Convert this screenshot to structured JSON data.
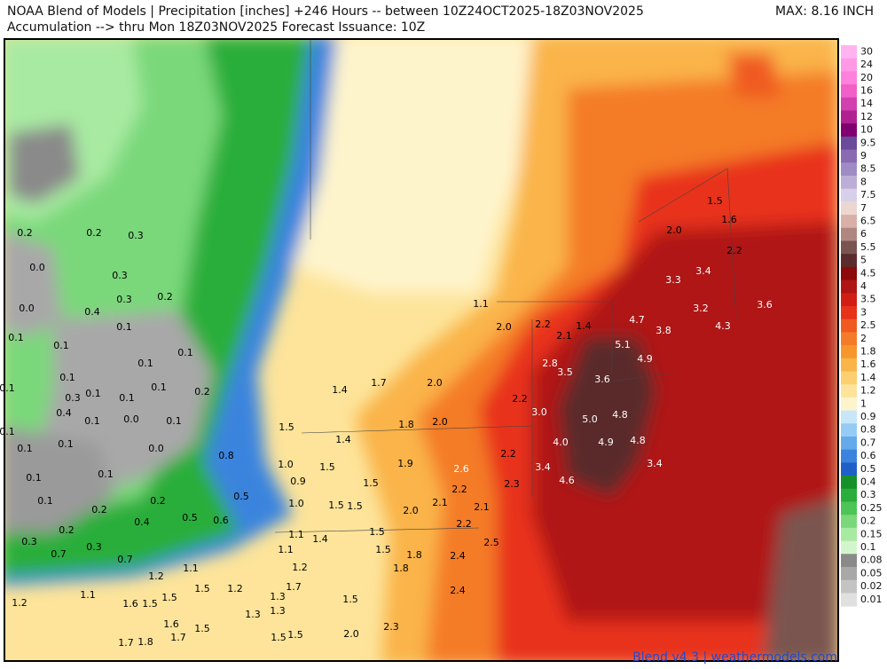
{
  "header": {
    "line1": "NOAA Blend of Models | Precipitation [inches] +246 Hours -- between 10Z24OCT2025-18Z03NOV2025",
    "line2": "Accumulation --> thru Mon 18Z03NOV2025   Forecast Issuance: 10Z",
    "max": "MAX: 8.16 INCH"
  },
  "footer": "Blend v4.3 | weathermodels.com",
  "legend": {
    "items": [
      {
        "label": "30",
        "color": "#ffb3f0"
      },
      {
        "label": "24",
        "color": "#ff99e6"
      },
      {
        "label": "20",
        "color": "#ff80dd"
      },
      {
        "label": "16",
        "color": "#f060c8"
      },
      {
        "label": "14",
        "color": "#d040b0"
      },
      {
        "label": "12",
        "color": "#b02090"
      },
      {
        "label": "10",
        "color": "#800070"
      },
      {
        "label": "9.5",
        "color": "#6a4a9a"
      },
      {
        "label": "9",
        "color": "#8a6ab0"
      },
      {
        "label": "8.5",
        "color": "#a08cc4"
      },
      {
        "label": "8",
        "color": "#bcaed6"
      },
      {
        "label": "7.5",
        "color": "#d8d0ea"
      },
      {
        "label": "7",
        "color": "#ecd6d0"
      },
      {
        "label": "6.5",
        "color": "#d8b0a8"
      },
      {
        "label": "6",
        "color": "#b08680"
      },
      {
        "label": "5.5",
        "color": "#7a5450"
      },
      {
        "label": "5",
        "color": "#5a2c2c"
      },
      {
        "label": "4.5",
        "color": "#8c0a0a"
      },
      {
        "label": "4",
        "color": "#b01414"
      },
      {
        "label": "3.5",
        "color": "#d01e14"
      },
      {
        "label": "3",
        "color": "#e8321a"
      },
      {
        "label": "2.5",
        "color": "#f05a20"
      },
      {
        "label": "2",
        "color": "#f47c28"
      },
      {
        "label": "1.8",
        "color": "#f8962e"
      },
      {
        "label": "1.6",
        "color": "#fab448"
      },
      {
        "label": "1.4",
        "color": "#fcd070"
      },
      {
        "label": "1.2",
        "color": "#fde49a"
      },
      {
        "label": "1",
        "color": "#fef4cc"
      },
      {
        "label": "0.9",
        "color": "#c8e6fa"
      },
      {
        "label": "0.8",
        "color": "#96ccf4"
      },
      {
        "label": "0.7",
        "color": "#64aaea"
      },
      {
        "label": "0.6",
        "color": "#3a84de"
      },
      {
        "label": "0.5",
        "color": "#1e60c8"
      },
      {
        "label": "0.4",
        "color": "#16902a"
      },
      {
        "label": "0.3",
        "color": "#2aae3a"
      },
      {
        "label": "0.25",
        "color": "#4cc456"
      },
      {
        "label": "0.2",
        "color": "#7ad87a"
      },
      {
        "label": "0.15",
        "color": "#a8eaa2"
      },
      {
        "label": "0.1",
        "color": "#d2f6cc"
      },
      {
        "label": "0.08",
        "color": "#8a8a8a"
      },
      {
        "label": "0.05",
        "color": "#a8a8a8"
      },
      {
        "label": "0.02",
        "color": "#c4c4c4"
      },
      {
        "label": "0.01",
        "color": "#e0e0e0"
      }
    ]
  },
  "points": [
    "0.2",
    "0.2",
    "0.3",
    "0.0",
    "0.3",
    "0.3",
    "0.2",
    "0.0",
    "0.4",
    "0.1",
    "0.1",
    "0.1",
    "0.1",
    "0.1",
    "0.1",
    "0.1",
    "0.3",
    "0.1",
    "0.1",
    "0.1",
    "0.2",
    "0.4",
    "0.1",
    "0.0",
    "0.1",
    "0.1",
    "0.1",
    "0.1",
    "0.0",
    "0.8",
    "0.1",
    "0.1",
    "0.1",
    "0.2",
    "0.2",
    "0.5",
    "0.4",
    "0.5",
    "0.6",
    "0.3",
    "0.2",
    "0.3",
    "0.7",
    "0.7",
    "1.1",
    "2.0",
    "2.2",
    "1.4",
    "2.1",
    "4.7",
    "5.1",
    "3.8",
    "4.9",
    "2.8",
    "3.5",
    "3.6",
    "1.4",
    "1.7",
    "2.0",
    "2.2",
    "3.0",
    "5.0",
    "4.8",
    "1.5",
    "1.8",
    "2.0",
    "1.4",
    "4.0",
    "4.9",
    "4.8",
    "1.0",
    "1.5",
    "1.9",
    "2.6",
    "2.2",
    "3.4",
    "3.4",
    "0.9",
    "1.5",
    "4.6",
    "2.3",
    "2.2",
    "1.0",
    "1.5",
    "1.5",
    "2.0",
    "2.1",
    "2.1",
    "1.1",
    "1.4",
    "1.5",
    "2.2",
    "2.5",
    "1.1",
    "1.5",
    "1.8",
    "2.4",
    "1.1",
    "1.2",
    "1.8",
    "1.2",
    "1.7",
    "2.4",
    "1.1",
    "1.5",
    "1.2",
    "1.2",
    "1.6",
    "1.5",
    "1.5",
    "1.3",
    "1.5",
    "1.6",
    "1.3",
    "1.3",
    "1.5",
    "1.7",
    "2.3",
    "1.7",
    "1.8",
    "1.5",
    "1.5",
    "2.0",
    "1.5",
    "1.6",
    "2.0",
    "2.2",
    "3.4",
    "3.3",
    "3.2",
    "3.6",
    "4.3"
  ]
}
